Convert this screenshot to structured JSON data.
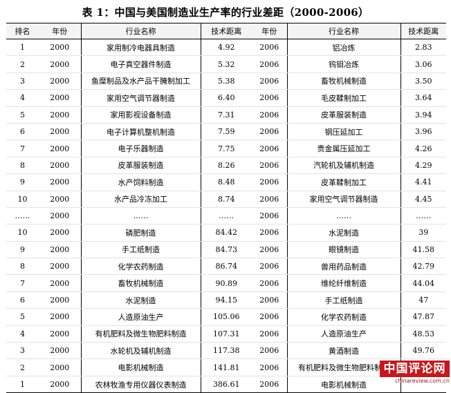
{
  "title": "表 1：中国与美国制造业生产率的行业差距（2000-2006）",
  "columns": [
    "排名",
    "年份",
    "行业名称",
    "技术距离",
    "年份",
    "行业名称",
    "技术距离"
  ],
  "rows": [
    [
      "1",
      "2000",
      "家用制冷电器具制造",
      "4.92",
      "2006",
      "铝冶炼",
      "2.83"
    ],
    [
      "2",
      "2000",
      "电子真空器件制造",
      "5.32",
      "2006",
      "钨钼冶炼",
      "3.06"
    ],
    [
      "3",
      "2000",
      "鱼糜制品及水产品干腌制加工",
      "5.38",
      "2006",
      "畜牧机械制造",
      "3.50"
    ],
    [
      "4",
      "2000",
      "家用空气调节器制造",
      "6.40",
      "2006",
      "毛皮鞣制加工",
      "3.64"
    ],
    [
      "5",
      "2000",
      "家用影视设备制造",
      "7.31",
      "2006",
      "皮革服装制造",
      "3.94"
    ],
    [
      "6",
      "2000",
      "电子计算机整机制造",
      "7.59",
      "2006",
      "钢压延加工",
      "3.96"
    ],
    [
      "7",
      "2000",
      "电子乐器制造",
      "7.75",
      "2006",
      "贵金属压延加工",
      "4.26"
    ],
    [
      "8",
      "2000",
      "皮革服装制造",
      "8.26",
      "2006",
      "汽轮机及辅机制造",
      "4.29"
    ],
    [
      "9",
      "2000",
      "水产饲料制造",
      "8.48",
      "2006",
      "皮革鞣制加工",
      "4.41"
    ],
    [
      "10",
      "2000",
      "水产品冷冻加工",
      "8.74",
      "2006",
      "家用空气调节器制造",
      "4.45"
    ],
    [
      "……",
      "2000",
      "……",
      "……",
      "2006",
      "……",
      "……"
    ],
    [
      "10",
      "2000",
      "磷肥制造",
      "84.42",
      "2006",
      "水泥制造",
      "39"
    ],
    [
      "9",
      "2000",
      "手工纸制造",
      "84.73",
      "2006",
      "眼镜制造",
      "41.58"
    ],
    [
      "8",
      "2000",
      "化学农药制造",
      "86.74",
      "2006",
      "兽用药品制造",
      "42.79"
    ],
    [
      "7",
      "2000",
      "畜牧机械制造",
      "90.89",
      "2006",
      "维纶纤维制造",
      "44.04"
    ],
    [
      "6",
      "2000",
      "水泥制造",
      "94.15",
      "2006",
      "手工纸制造",
      "47"
    ],
    [
      "5",
      "2000",
      "人造原油生产",
      "105.06",
      "2006",
      "化学农药制造",
      "47.87"
    ],
    [
      "4",
      "2000",
      "有机肥料及微生物肥料制造",
      "107.31",
      "2006",
      "人造原油生产",
      "48.53"
    ],
    [
      "3",
      "2000",
      "水轮机及辅机制造",
      "117.38",
      "2006",
      "黄酒制造",
      "49.76"
    ],
    [
      "2",
      "2000",
      "电影机械制造",
      "141.81",
      "2006",
      "有机肥料及微生物肥料制造",
      "53.94"
    ],
    [
      "1",
      "2000",
      "农林牧渔专用仪器仪表制造",
      "386.61",
      "2006",
      "电影机械制造",
      ""
    ]
  ],
  "watermark": {
    "brand": "中国评论网",
    "url": "chinareview.com.cn",
    "color": "#c8161d"
  }
}
